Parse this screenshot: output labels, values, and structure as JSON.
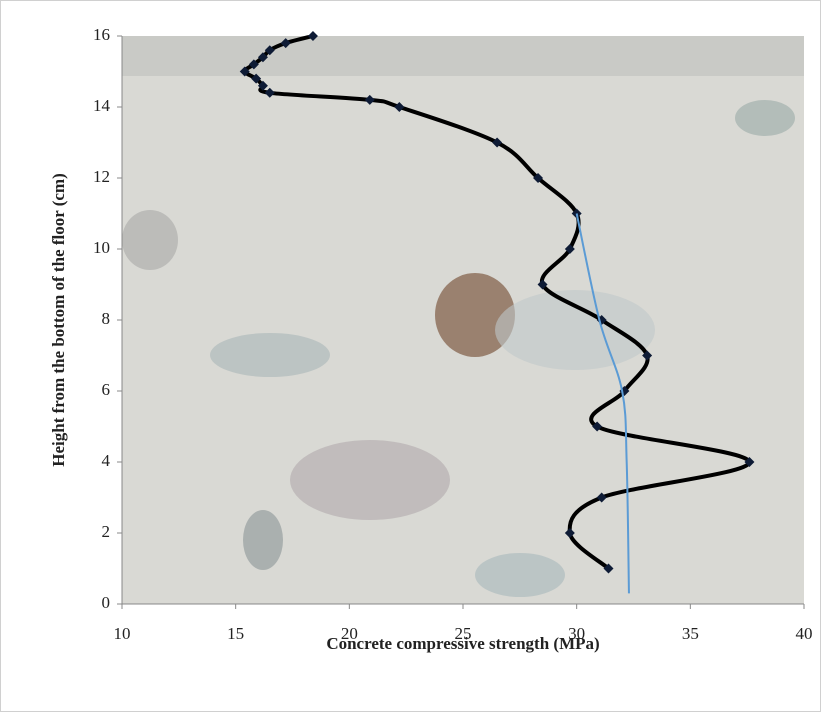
{
  "chart_data": {
    "type": "line",
    "xlabel": "Concrete compressive strength (MPa)",
    "ylabel": "Height from the bottom of the floor (cm)",
    "xlim": [
      10,
      40
    ],
    "xticks": [
      10,
      15,
      20,
      25,
      30,
      35,
      40
    ],
    "ylim": [
      0,
      16
    ],
    "yticks": [
      0,
      2,
      4,
      6,
      8,
      10,
      12,
      14,
      16
    ],
    "series": [
      {
        "color": "#000000",
        "markers": true,
        "smooth": true,
        "x": [
          18.4,
          17.2,
          16.5,
          16.2,
          15.8,
          15.4,
          15.9,
          16.2,
          16.5,
          20.9,
          22.2,
          26.5,
          28.3,
          30.0,
          29.7,
          28.5,
          31.1,
          33.1,
          32.1,
          30.9,
          37.6,
          31.1,
          29.7,
          31.4
        ],
        "values": [
          16,
          15.8,
          15.6,
          15.4,
          15.2,
          15.0,
          14.8,
          14.6,
          14.4,
          14.2,
          14.0,
          13,
          12,
          11,
          10,
          9,
          8,
          7,
          6,
          5,
          4,
          3,
          2,
          1
        ]
      },
      {
        "color": "#5b9bd5",
        "markers": false,
        "smooth": true,
        "x": [
          30.0,
          31.0,
          32.0,
          32.2,
          32.3
        ],
        "values": [
          11,
          8,
          6,
          4,
          0.3
        ]
      }
    ]
  }
}
